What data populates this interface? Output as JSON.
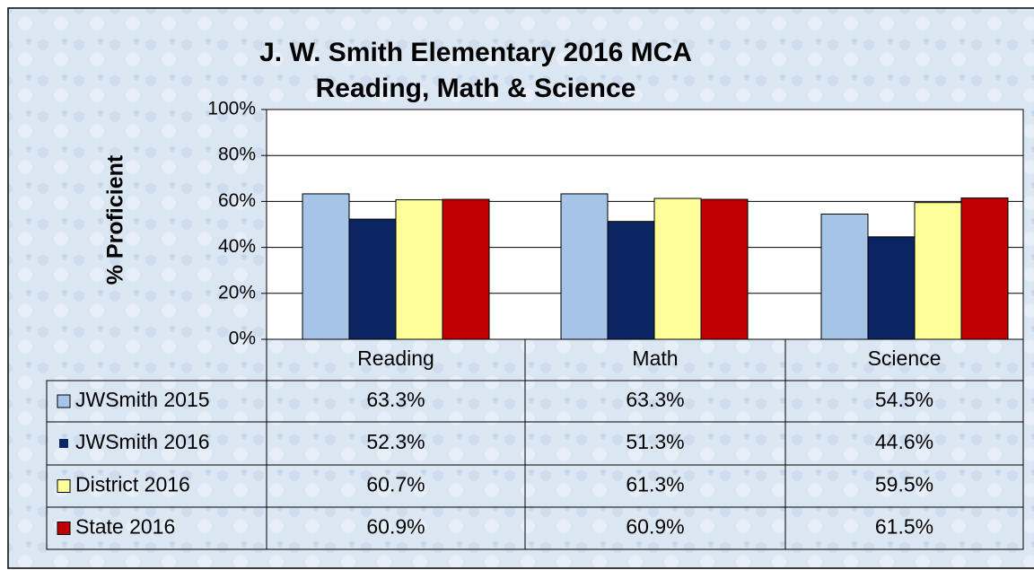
{
  "chart_data": {
    "type": "bar",
    "title": "J. W. Smith Elementary 2016 MCA",
    "subtitle": "Reading, Math & Science",
    "y_label": "% Proficient",
    "categories": [
      "Reading",
      "Math",
      "Science"
    ],
    "series": [
      {
        "name": "JWSmith 2015",
        "color": "#a6c5e6",
        "values": [
          63.3,
          63.3,
          54.5
        ],
        "value_labels": [
          "63.3%",
          "63.3%",
          "54.5%"
        ]
      },
      {
        "name": "JWSmith 2016",
        "color": "#0b2562",
        "values": [
          52.3,
          51.3,
          44.6
        ],
        "value_labels": [
          "52.3%",
          "51.3%",
          "44.6%"
        ]
      },
      {
        "name": "District  2016",
        "color": "#ffff99",
        "values": [
          60.7,
          61.3,
          59.5
        ],
        "value_labels": [
          "60.7%",
          "61.3%",
          "59.5%"
        ]
      },
      {
        "name": "State 2016",
        "color": "#c00000",
        "values": [
          60.9,
          60.9,
          61.5
        ],
        "value_labels": [
          "60.9%",
          "60.9%",
          "61.5%"
        ]
      }
    ],
    "ylim": [
      0,
      100
    ],
    "yticks": [
      {
        "value": 0,
        "label": "0%"
      },
      {
        "value": 20,
        "label": "20%"
      },
      {
        "value": 40,
        "label": "40%"
      },
      {
        "value": 60,
        "label": "60%"
      },
      {
        "value": 80,
        "label": "80%"
      },
      {
        "value": 100,
        "label": "100%"
      }
    ],
    "grid": true
  }
}
